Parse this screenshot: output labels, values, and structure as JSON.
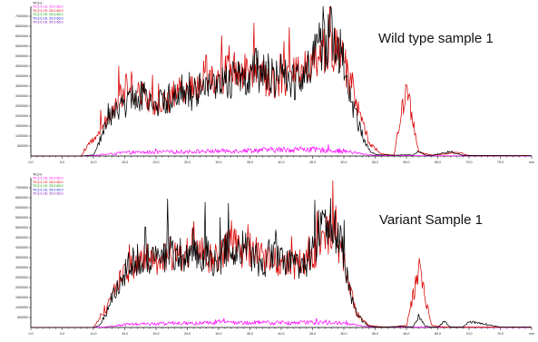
{
  "chart_data": [
    {
      "type": "line",
      "title": "Wild type sample 1",
      "legend": [
        "TIC(+)",
        "TIC(+) CE: 25.0-65.0",
        "TIC(+) CE: 25.0-65.0",
        "TIC(+) CE: 25.0-65.0",
        "TIC(+) CE: 25.0-65.0",
        "TIC(+) CE: 25.0-65.0"
      ],
      "legend_placement": "top-left",
      "xlim": [
        0,
        80
      ],
      "ylim": [
        0,
        7500000
      ],
      "x_ticks": [
        "0.0",
        "5.0",
        "10.0",
        "15.0",
        "20.0",
        "25.0",
        "30.0",
        "35.0",
        "40.0",
        "45.0",
        "50.0",
        "55.0",
        "60.0",
        "65.0",
        "70.0",
        "75.0",
        "min"
      ],
      "y_ticks": [
        "500000",
        "1000000",
        "1500000",
        "2000000",
        "2500000",
        "3000000",
        "3500000",
        "4000000",
        "4500000",
        "5000000",
        "5500000",
        "6000000",
        "6500000",
        "7000000"
      ],
      "grid": false,
      "series": [
        {
          "name": "TIC(+)",
          "color": "#000000",
          "x": [
            0,
            8,
            10,
            11,
            12,
            13,
            14,
            15,
            16,
            17,
            18,
            19,
            20,
            21,
            22,
            23,
            24,
            25,
            26,
            27,
            28,
            29,
            30,
            31,
            32,
            33,
            34,
            35,
            36,
            37,
            38,
            39,
            40,
            41,
            42,
            43,
            44,
            45,
            46,
            47,
            48,
            49,
            50,
            51,
            52,
            53,
            54,
            55,
            56,
            57,
            58,
            59,
            60,
            61,
            62,
            63,
            64,
            65,
            66,
            67,
            68,
            69,
            70,
            75,
            80
          ],
          "y": [
            0,
            0,
            50000,
            800000,
            1700000,
            2200000,
            2400000,
            2600000,
            3200000,
            2900000,
            3300000,
            3000000,
            2800000,
            2700000,
            2900000,
            3100000,
            3400000,
            3000000,
            3200000,
            3500000,
            3900000,
            3600000,
            3400000,
            4100000,
            3800000,
            4300000,
            4000000,
            4200000,
            4500000,
            4100000,
            4300000,
            4000000,
            4200000,
            3900000,
            3800000,
            4200000,
            4600000,
            5000000,
            5600000,
            5800000,
            6200000,
            5600000,
            4900000,
            3100000,
            2000000,
            1000000,
            300000,
            100000,
            50000,
            50000,
            40000,
            50000,
            60000,
            40000,
            200000,
            50000,
            30000,
            100000,
            150000,
            250000,
            100000,
            40000,
            30000,
            20000,
            20000
          ]
        },
        {
          "name": "TIC(+) CE: 25.0-65.0",
          "color": "#d80000",
          "x": [
            0,
            8,
            12,
            14,
            16,
            18,
            20,
            22,
            24,
            26,
            28,
            30,
            32,
            34,
            36,
            38,
            40,
            42,
            44,
            46,
            48,
            50,
            52,
            54,
            56,
            58,
            60,
            62,
            64,
            66,
            68,
            70,
            75,
            80
          ],
          "y": [
            0,
            0,
            1800000,
            3000000,
            3600000,
            3100000,
            2600000,
            2800000,
            3600000,
            3300000,
            4400000,
            3700000,
            4600000,
            4300000,
            4600000,
            3800000,
            3900000,
            4100000,
            4700000,
            5200000,
            5600000,
            5000000,
            2800000,
            700000,
            100000,
            40000,
            3500000,
            200000,
            40000,
            100000,
            200000,
            30000,
            20000,
            20000
          ]
        },
        {
          "name": "TIC(+) CE: 25.0-65.0",
          "color": "#ff00ff",
          "x": [
            0,
            8,
            10,
            15,
            20,
            25,
            30,
            35,
            38,
            40,
            44,
            45,
            48,
            50,
            52,
            54,
            56,
            80
          ],
          "y": [
            0,
            0,
            20000,
            180000,
            200000,
            230000,
            260000,
            300000,
            320000,
            330000,
            360000,
            330000,
            300000,
            260000,
            160000,
            60000,
            20000,
            0
          ]
        }
      ]
    },
    {
      "type": "line",
      "title": "Variant Sample 1",
      "legend": [
        "TIC(+)",
        "TIC(+) CE: 25.0-65.0",
        "TIC(+) CE: 25.0-65.0",
        "TIC(+) CE: 25.0-65.0",
        "TIC(+) CE: 25.0-65.0",
        "TIC(+) CE: 25.0-65.0"
      ],
      "legend_placement": "top-left",
      "xlim": [
        0,
        80
      ],
      "ylim": [
        0,
        7500000
      ],
      "x_ticks": [
        "0.0",
        "5.0",
        "10.0",
        "15.0",
        "20.0",
        "25.0",
        "30.0",
        "35.0",
        "40.0",
        "45.0",
        "50.0",
        "55.0",
        "60.0",
        "65.0",
        "70.0",
        "75.0",
        "min"
      ],
      "y_ticks": [
        "500000",
        "1000000",
        "1500000",
        "2000000",
        "2500000",
        "3000000",
        "3500000",
        "4000000",
        "4500000",
        "5000000",
        "5500000",
        "6000000",
        "6500000",
        "7000000"
      ],
      "grid": false,
      "series": [
        {
          "name": "TIC(+)",
          "color": "#000000",
          "x": [
            0,
            10,
            11,
            12,
            13,
            14,
            15,
            16,
            17,
            18,
            19,
            20,
            21,
            22,
            23,
            24,
            25,
            26,
            27,
            28,
            29,
            30,
            31,
            32,
            33,
            34,
            35,
            36,
            37,
            38,
            39,
            40,
            41,
            42,
            43,
            44,
            45,
            46,
            47,
            48,
            49,
            50,
            51,
            52,
            53,
            54,
            55,
            56,
            57,
            58,
            59,
            60,
            61,
            62,
            63,
            64,
            65,
            66,
            67,
            68,
            69,
            70,
            75,
            80
          ],
          "y": [
            0,
            0,
            100000,
            700000,
            1600000,
            2100000,
            2800000,
            3300000,
            3500000,
            3100000,
            3700000,
            3300000,
            3600000,
            4200000,
            3400000,
            3900000,
            3700000,
            4300000,
            3500000,
            3900000,
            3100000,
            3400000,
            3800000,
            4400000,
            3600000,
            4300000,
            4000000,
            3500000,
            3200000,
            3600000,
            3900000,
            3300000,
            3400000,
            3100000,
            3000000,
            3500000,
            3800000,
            4500000,
            5200000,
            5500000,
            4700000,
            3600000,
            1900000,
            800000,
            300000,
            80000,
            30000,
            20000,
            20000,
            40000,
            60000,
            40000,
            30000,
            600000,
            60000,
            20000,
            20000,
            300000,
            30000,
            20000,
            20000,
            300000,
            20000,
            20000
          ]
        },
        {
          "name": "TIC(+) CE: 25.0-65.0",
          "color": "#d80000",
          "x": [
            0,
            10,
            12,
            14,
            16,
            18,
            20,
            22,
            24,
            26,
            28,
            30,
            32,
            34,
            36,
            38,
            40,
            42,
            44,
            46,
            48,
            50,
            52,
            54,
            56,
            58,
            60,
            62,
            64,
            66,
            68,
            70,
            75,
            80
          ],
          "y": [
            0,
            0,
            900000,
            2400000,
            3100000,
            3500000,
            3400000,
            3900000,
            3500000,
            4400000,
            3500000,
            3600000,
            4300000,
            3900000,
            4100000,
            3500000,
            3400000,
            3200000,
            3400000,
            4200000,
            5000000,
            3300000,
            700000,
            100000,
            30000,
            40000,
            100000,
            3000000,
            100000,
            20000,
            20000,
            20000,
            20000,
            20000
          ]
        },
        {
          "name": "TIC(+) CE: 25.0-65.0",
          "color": "#ff00ff",
          "x": [
            0,
            10,
            12,
            15,
            20,
            25,
            30,
            35,
            40,
            45,
            48,
            50,
            52,
            54,
            80
          ],
          "y": [
            0,
            0,
            30000,
            150000,
            200000,
            220000,
            240000,
            250000,
            240000,
            260000,
            250000,
            200000,
            120000,
            30000,
            0
          ]
        }
      ]
    }
  ]
}
